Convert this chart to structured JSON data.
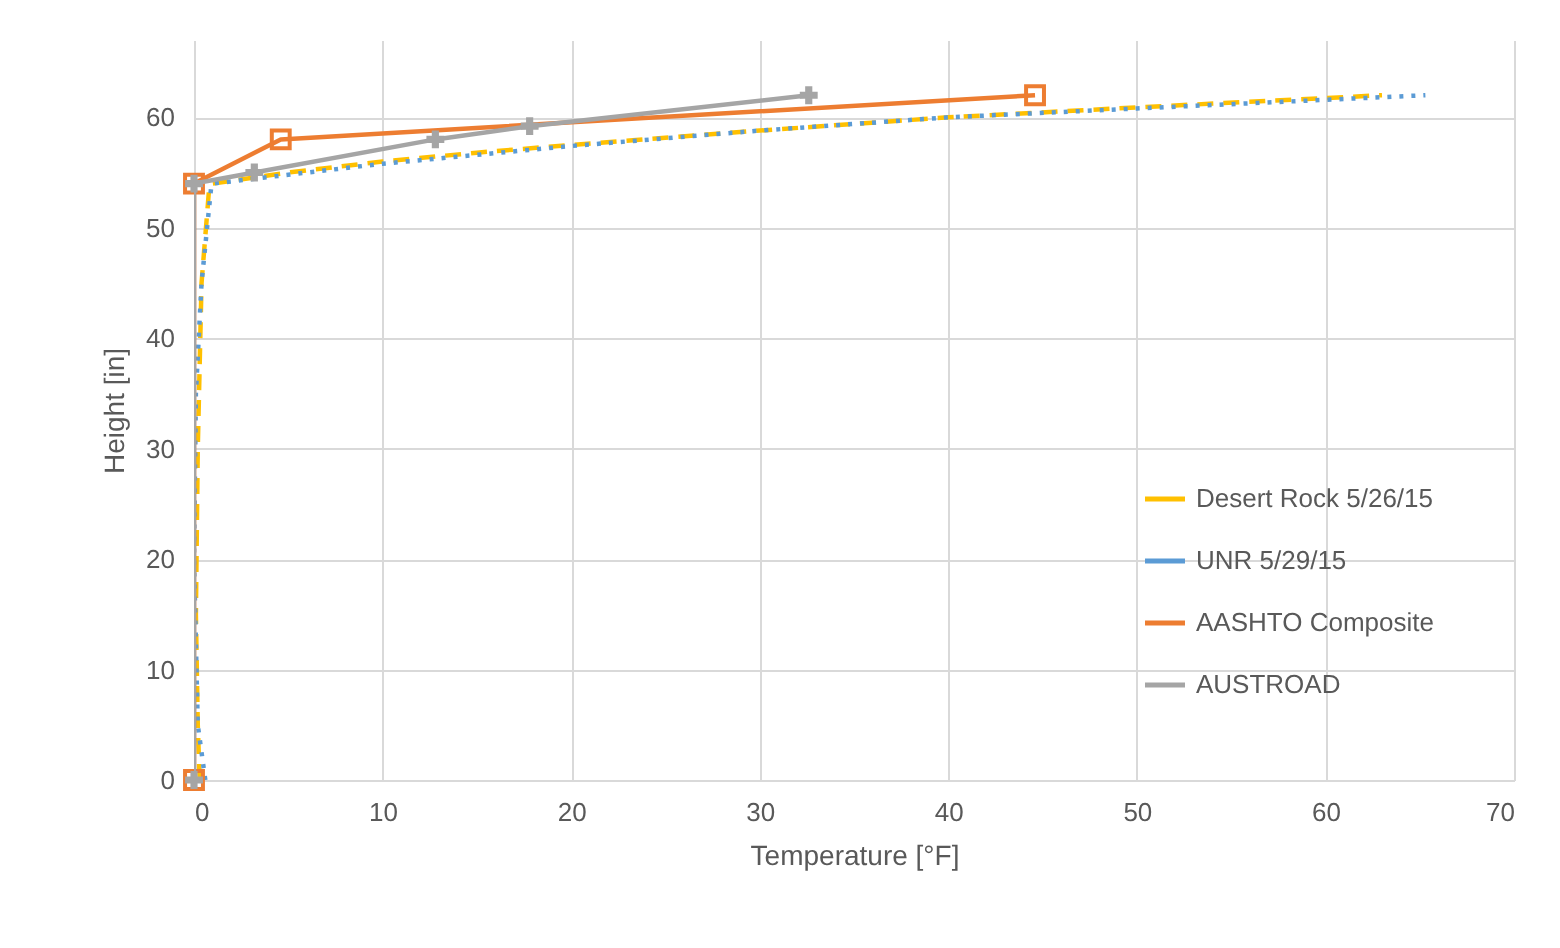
{
  "chart_data": {
    "type": "line",
    "xlabel": "Temperature [°F]",
    "ylabel": "Height [in]",
    "xlim": [
      0,
      70
    ],
    "ylim": [
      0,
      67
    ],
    "xticks": [
      0,
      10,
      20,
      30,
      40,
      50,
      60,
      70
    ],
    "yticks": [
      0,
      10,
      20,
      30,
      40,
      50,
      60
    ],
    "grid": true,
    "legend": "bottom right",
    "series": [
      {
        "name": "Desert Rock 5/26/15",
        "color": "#ffc000",
        "line_style": "dashed",
        "marker": "none",
        "x": [
          0.3,
          0.2,
          0.1,
          0.2,
          0.4,
          0.8,
          1,
          5,
          10,
          15,
          20,
          30,
          40,
          50,
          63
        ],
        "values": [
          0,
          5,
          15,
          30,
          45,
          53.5,
          54,
          55,
          56,
          56.8,
          57.5,
          58.8,
          60,
          60.9,
          62
        ]
      },
      {
        "name": "UNR 5/29/15",
        "color": "#5b9bd5",
        "line_style": "dotted",
        "marker": "none",
        "x": [
          0.6,
          0.2,
          0,
          0.1,
          0.4,
          0.9,
          1,
          5,
          10,
          20,
          30,
          40,
          50,
          65.3
        ],
        "values": [
          0,
          5,
          20,
          35,
          45,
          53.5,
          54,
          54.8,
          55.8,
          57.4,
          58.8,
          60,
          60.8,
          62
        ]
      },
      {
        "name": "AASHTO Composite",
        "color": "#ed7d31",
        "line_style": "solid",
        "marker": "square",
        "x": [
          0,
          0,
          4.6,
          44.6
        ],
        "values": [
          0,
          54,
          58,
          62
        ]
      },
      {
        "name": "AUSTROAD",
        "color": "#a5a5a5",
        "line_style": "solid",
        "marker": "cross",
        "x": [
          0,
          0,
          3.2,
          12.8,
          17.8,
          32.6
        ],
        "values": [
          0,
          54,
          55,
          58,
          59.2,
          62
        ]
      }
    ]
  }
}
